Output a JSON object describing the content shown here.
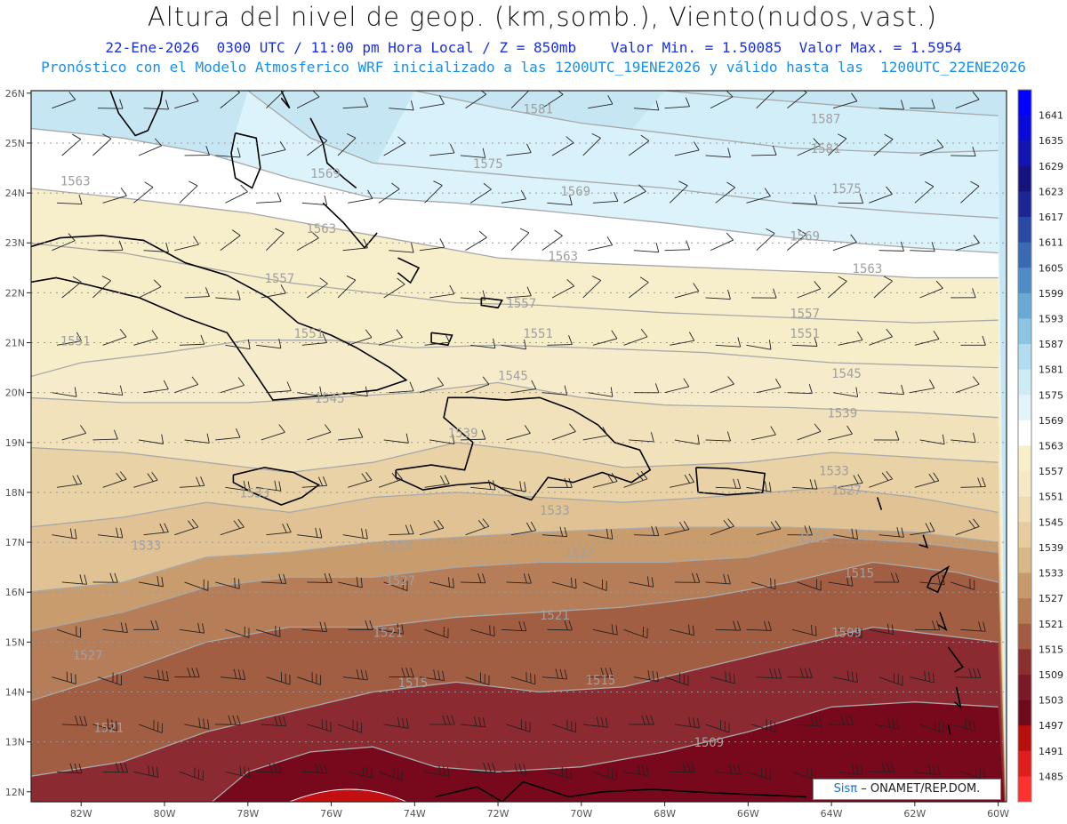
{
  "header": {
    "title": "Altura del nivel de geop. (km,somb.), Viento(nudos,vast.)",
    "line1": "22-Ene-2026  0300 UTC / 11:00 pm Hora Local / Z = 850mb    Valor Min. = 1.50085  Valor Max. = 1.5954",
    "line2": "Pronóstico con el Modelo Atmosferico WRF inicializado a las 1200UTC_19ENE2026 y válido hasta las  1200UTC_22ENE2026"
  },
  "map": {
    "lat_labels": [
      "26N",
      "25N",
      "24N",
      "23N",
      "22N",
      "21N",
      "20N",
      "19N",
      "18N",
      "17N",
      "16N",
      "15N",
      "14N",
      "13N",
      "12N"
    ],
    "lon_labels": [
      "82W",
      "80W",
      "78W",
      "76W",
      "74W",
      "72W",
      "70W",
      "68W",
      "66W",
      "64W",
      "62W",
      "60W"
    ],
    "contour_labels": [
      {
        "text": "1587",
        "lon": -64.5,
        "lat": 25.4
      },
      {
        "text": "1581",
        "lon": -71.4,
        "lat": 25.6
      },
      {
        "text": "1581",
        "lon": -64.5,
        "lat": 24.8
      },
      {
        "text": "1575",
        "lon": -72.6,
        "lat": 24.5
      },
      {
        "text": "1575",
        "lon": -64.0,
        "lat": 24.0
      },
      {
        "text": "1569",
        "lon": -70.5,
        "lat": 23.95
      },
      {
        "text": "1569",
        "lon": -76.5,
        "lat": 24.3
      },
      {
        "text": "1569",
        "lon": -65.0,
        "lat": 23.05
      },
      {
        "text": "1563",
        "lon": -82.5,
        "lat": 24.15
      },
      {
        "text": "1563",
        "lon": -76.6,
        "lat": 23.2
      },
      {
        "text": "1563",
        "lon": -70.8,
        "lat": 22.65
      },
      {
        "text": "1563",
        "lon": -63.5,
        "lat": 22.4
      },
      {
        "text": "1557",
        "lon": -77.6,
        "lat": 22.2
      },
      {
        "text": "1557",
        "lon": -71.8,
        "lat": 21.7
      },
      {
        "text": "1557",
        "lon": -65.0,
        "lat": 21.5
      },
      {
        "text": "1551",
        "lon": -82.5,
        "lat": 20.95
      },
      {
        "text": "1551",
        "lon": -76.9,
        "lat": 21.1
      },
      {
        "text": "1551",
        "lon": -71.4,
        "lat": 21.1
      },
      {
        "text": "1551",
        "lon": -65.0,
        "lat": 21.1
      },
      {
        "text": "1545",
        "lon": -72.0,
        "lat": 20.25
      },
      {
        "text": "1545",
        "lon": -64.0,
        "lat": 20.3
      },
      {
        "text": "1545",
        "lon": -76.4,
        "lat": 19.8
      },
      {
        "text": "1539",
        "lon": -73.2,
        "lat": 19.1
      },
      {
        "text": "1539",
        "lon": -64.1,
        "lat": 19.5
      },
      {
        "text": "1533",
        "lon": -78.2,
        "lat": 17.9
      },
      {
        "text": "1533",
        "lon": -71.0,
        "lat": 17.55
      },
      {
        "text": "1533",
        "lon": -64.3,
        "lat": 18.35
      },
      {
        "text": "1533",
        "lon": -80.8,
        "lat": 16.85
      },
      {
        "text": "1533",
        "lon": -74.8,
        "lat": 16.85
      },
      {
        "text": "1527",
        "lon": -70.4,
        "lat": 16.7
      },
      {
        "text": "1527",
        "lon": -64.0,
        "lat": 17.95
      },
      {
        "text": "1527",
        "lon": -74.7,
        "lat": 16.15
      },
      {
        "text": "1527",
        "lon": -82.2,
        "lat": 14.65
      },
      {
        "text": "1521",
        "lon": -64.8,
        "lat": 17.0
      },
      {
        "text": "1521",
        "lon": -71.0,
        "lat": 15.45
      },
      {
        "text": "1521",
        "lon": -75.0,
        "lat": 15.1
      },
      {
        "text": "1521",
        "lon": -81.7,
        "lat": 13.2
      },
      {
        "text": "1515",
        "lon": -63.7,
        "lat": 16.3
      },
      {
        "text": "1515",
        "lon": -74.4,
        "lat": 14.1
      },
      {
        "text": "1515",
        "lon": -69.9,
        "lat": 14.15
      },
      {
        "text": "1509",
        "lon": -64.0,
        "lat": 15.1
      },
      {
        "text": "1509",
        "lon": -67.3,
        "lat": 12.9
      }
    ]
  },
  "colorbar": {
    "labels": [
      "1641",
      "1635",
      "1629",
      "1623",
      "1617",
      "1611",
      "1605",
      "1599",
      "1593",
      "1587",
      "1581",
      "1575",
      "1569",
      "1563",
      "1557",
      "1551",
      "1545",
      "1539",
      "1533",
      "1527",
      "1521",
      "1515",
      "1509",
      "1503",
      "1497",
      "1491",
      "1485"
    ],
    "colors": [
      "#0000ff",
      "#0a0ad8",
      "#1414b0",
      "#15137e",
      "#1e2696",
      "#2a48a6",
      "#3a6ab4",
      "#4f8cc6",
      "#6aa8d6",
      "#8cc4e4",
      "#b2dcef",
      "#cdecf5",
      "#e2f4fa",
      "#ffffff",
      "#f7efc8",
      "#f5e8c4",
      "#efdcb3",
      "#e6cc9e",
      "#d9b888",
      "#c8996a",
      "#b57c55",
      "#a35c42",
      "#8a2f30",
      "#7b1a26",
      "#6f0a1c",
      "#b80e0e",
      "#e01c1c",
      "#ff3030"
    ]
  },
  "credit": {
    "brand": "Sisπ",
    "org": "– ONAMET/REP.DOM."
  }
}
